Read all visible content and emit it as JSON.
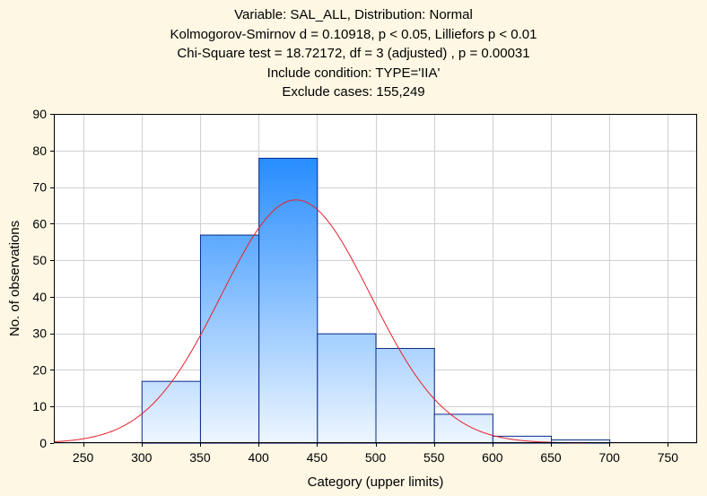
{
  "chart_data": {
    "type": "bar",
    "title_lines": [
      "Variable: SAL_ALL, Distribution: Normal",
      "Kolmogorov-Smirnov d = 0.10918, p < 0.05, Lilliefors p < 0.01",
      "Chi-Square test = 18.72172, df = 3 (adjusted) , p = 0.00031",
      "Include condition: TYPE='IIA'",
      "Exclude cases: 155,249"
    ],
    "xlabel": "Category (upper limits)",
    "ylabel": "No. of observations",
    "xlim": [
      225,
      775
    ],
    "ylim": [
      0,
      90
    ],
    "x_ticks": [
      250,
      300,
      350,
      400,
      450,
      500,
      550,
      600,
      650,
      700,
      750
    ],
    "y_ticks": [
      0,
      10,
      20,
      30,
      40,
      50,
      60,
      70,
      80,
      90
    ],
    "grid": true,
    "bins": [
      {
        "lower": 300,
        "upper": 350,
        "value": 17
      },
      {
        "lower": 350,
        "upper": 400,
        "value": 57
      },
      {
        "lower": 400,
        "upper": 450,
        "value": 78
      },
      {
        "lower": 450,
        "upper": 500,
        "value": 30
      },
      {
        "lower": 500,
        "upper": 550,
        "value": 26
      },
      {
        "lower": 550,
        "upper": 600,
        "value": 8
      },
      {
        "lower": 600,
        "upper": 650,
        "value": 2
      },
      {
        "lower": 650,
        "upper": 700,
        "value": 1
      }
    ],
    "normal_curve": {
      "mean": 432,
      "sd": 64,
      "peak": 66.5
    },
    "colors": {
      "bar_top": "#1e88ff",
      "bar_bottom": "#eef6ff",
      "bar_stroke": "#0a2a8c",
      "curve": "#e8202a",
      "grid": "#d0d0d0",
      "background": "#fdf7e3",
      "plot_background": "#ffffff"
    }
  }
}
